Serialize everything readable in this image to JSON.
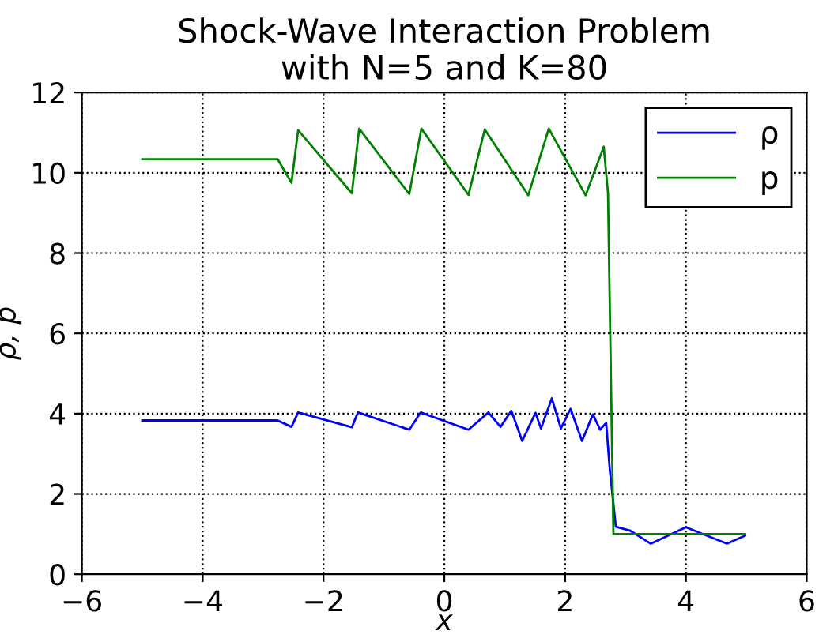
{
  "chart_data": {
    "type": "line",
    "title": "Shock-Wave Interaction Problem\nwith N=5 and K=80",
    "xlabel": "x",
    "ylabel": "ρ, p",
    "xlim": [
      -6,
      6
    ],
    "ylim": [
      0,
      12
    ],
    "xticks": [
      -6,
      -4,
      -2,
      0,
      2,
      4,
      6
    ],
    "yticks": [
      0,
      2,
      4,
      6,
      8,
      10,
      12
    ],
    "grid": true,
    "legend": "top right",
    "line_style": "solid",
    "marker": "none",
    "series": [
      {
        "name": "ρ",
        "color": "#0000ff",
        "x": [
          -5,
          -2.76,
          -2.53,
          -2.42,
          -1.53,
          -1.43,
          -0.58,
          -0.39,
          0.4,
          0.73,
          0.93,
          1.11,
          1.29,
          1.51,
          1.6,
          1.78,
          1.93,
          2.09,
          2.28,
          2.46,
          2.58,
          2.68,
          2.74,
          2.84,
          3.07,
          3.42,
          4.0,
          4.68,
          4.98
        ],
        "values": [
          3.83,
          3.83,
          3.67,
          4.03,
          3.66,
          4.03,
          3.6,
          4.03,
          3.6,
          4.03,
          3.67,
          4.07,
          3.32,
          4.02,
          3.63,
          4.38,
          3.63,
          4.12,
          3.32,
          3.98,
          3.6,
          3.77,
          2.6,
          1.18,
          1.09,
          0.76,
          1.17,
          0.76,
          0.96
        ]
      },
      {
        "name": "p",
        "color": "#008000",
        "x": [
          -5,
          -2.76,
          -2.53,
          -2.42,
          -1.53,
          -1.41,
          -0.58,
          -0.38,
          0.4,
          0.67,
          1.39,
          1.73,
          2.34,
          2.64,
          2.71,
          2.8,
          4.98
        ],
        "values": [
          10.34,
          10.34,
          9.75,
          11.06,
          9.49,
          11.1,
          9.47,
          11.1,
          9.45,
          11.08,
          9.44,
          11.1,
          9.44,
          10.65,
          9.5,
          1.0,
          1.0
        ]
      }
    ]
  }
}
